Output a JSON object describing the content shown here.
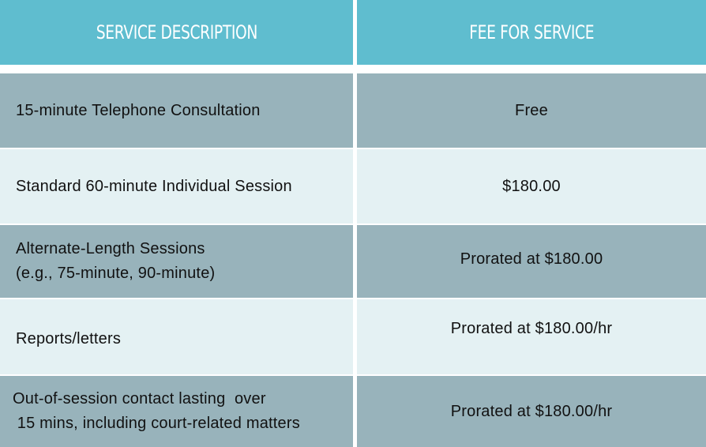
{
  "header": {
    "col1": "SERVICE DESCRIPTION",
    "col2": "FEE FOR SERVICE"
  },
  "rows": [
    {
      "desc": [
        "15-minute Telephone Consultation"
      ],
      "fee": "Free"
    },
    {
      "desc": [
        "Standard 60-minute Individual Session"
      ],
      "fee": "$180.00"
    },
    {
      "desc": [
        "Alternate-Length Sessions",
        "(e.g., 75-minute, 90-minute)"
      ],
      "fee": "Prorated at $180.00"
    },
    {
      "desc": [
        "Reports/letters"
      ],
      "fee": "Prorated at $180.00/hr"
    },
    {
      "desc": [
        "Out-of-session contact lasting  over",
        " 15 mins, including court-related matters"
      ],
      "fee": "Prorated at $180.00/hr"
    }
  ],
  "colors": {
    "header": "#5fbdcf",
    "row_dark": "#98b3bb",
    "row_light": "#e4f1f3"
  }
}
